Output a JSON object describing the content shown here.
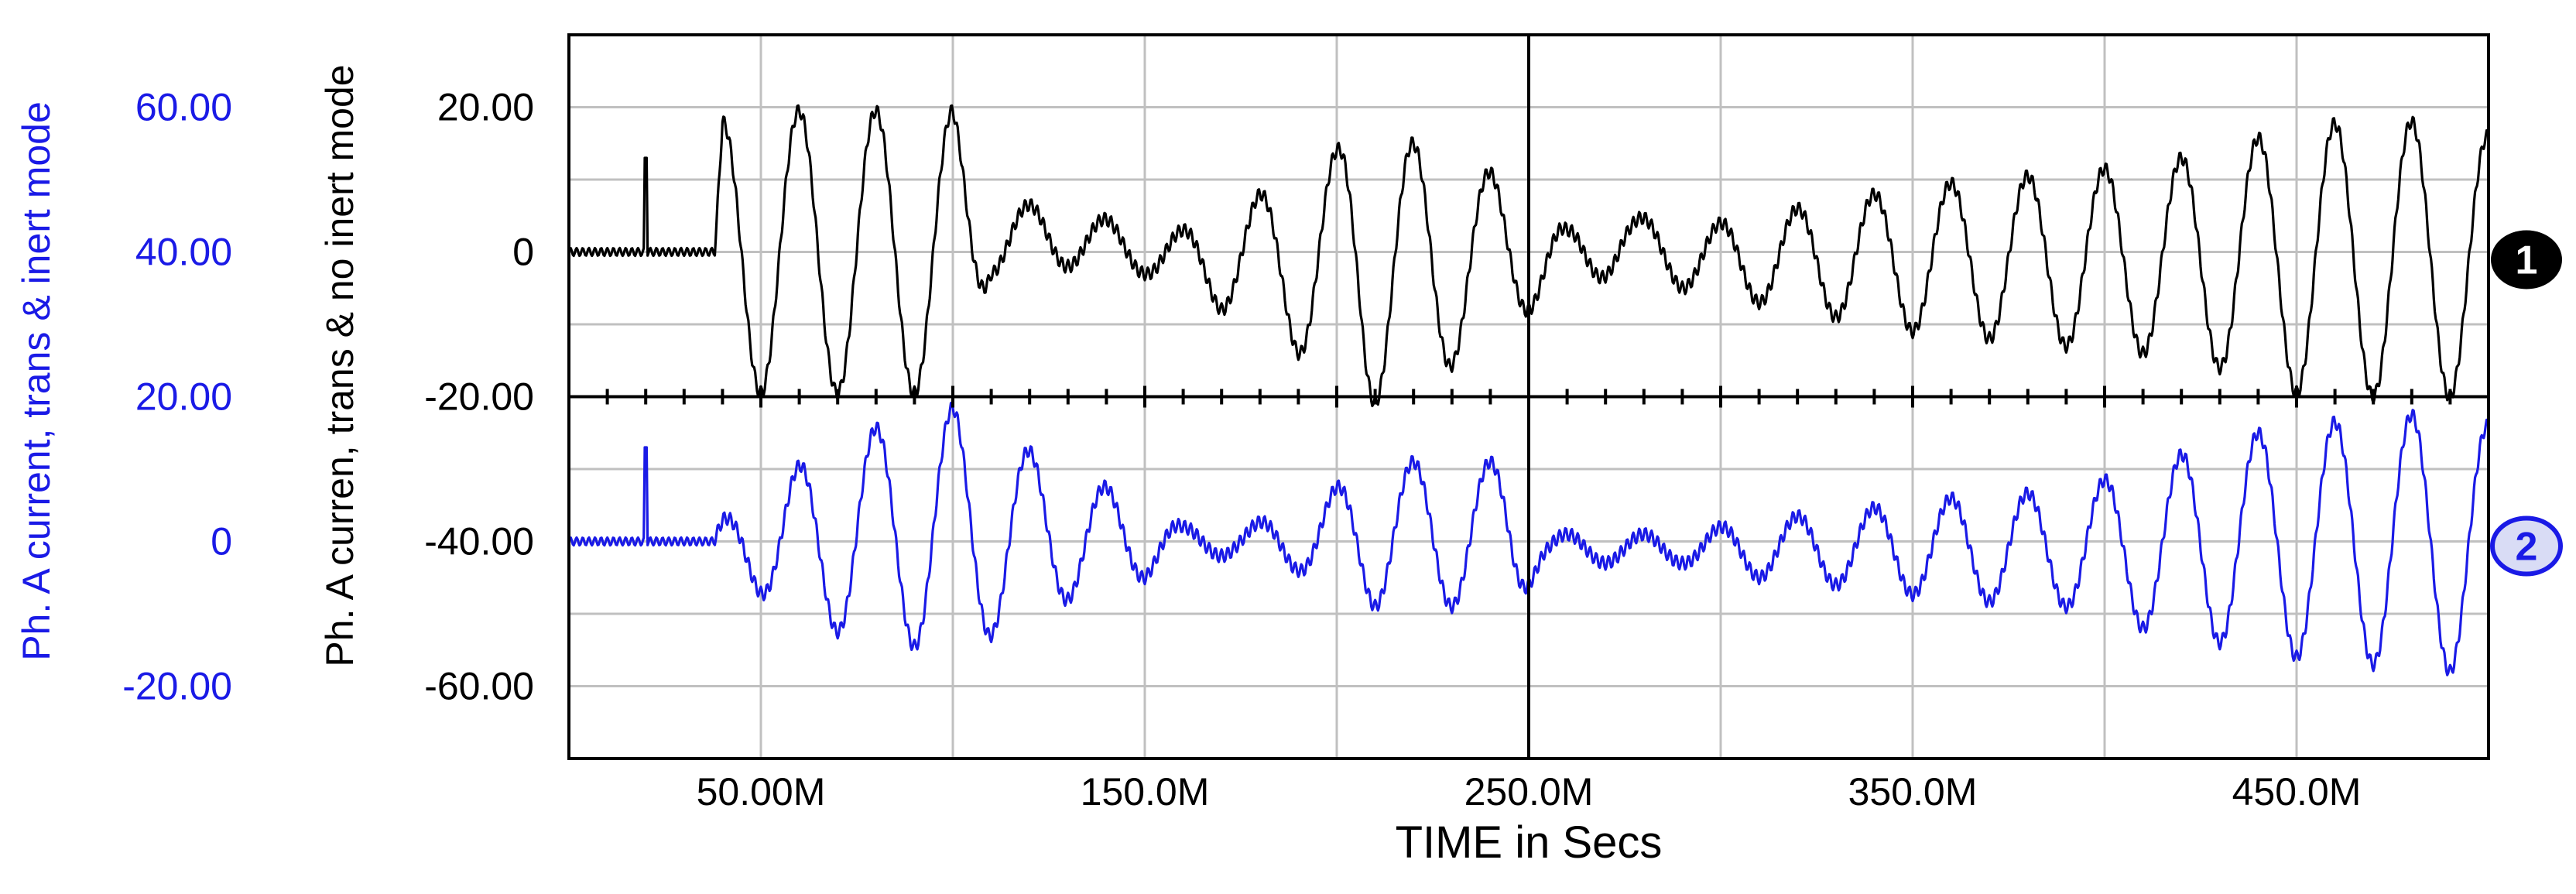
{
  "chart_data": {
    "type": "line",
    "xlabel": "TIME in Secs",
    "x_unit_scale": 0.001,
    "xlim": [
      0,
      500
    ],
    "x_tick_values": [
      50,
      150,
      250,
      350,
      450
    ],
    "x_tick_labels": [
      "50.00M",
      "150.0M",
      "250.0M",
      "350.0M",
      "450.0M"
    ],
    "grid": true,
    "axes": [
      {
        "id": "right_axis_black",
        "label": "Ph. A curren, trans & no inert mode",
        "color": "#000000",
        "ylim": [
          -70,
          30
        ],
        "tick_values": [
          20,
          0,
          -20,
          -40,
          -60
        ],
        "tick_labels": [
          "20.00",
          "0",
          "-20.00",
          "-40.00",
          "-60.00"
        ]
      },
      {
        "id": "left_axis_blue",
        "label": "Ph. A current, trans & inert mode",
        "color": "#1a1ae6",
        "ylim": [
          -30,
          70
        ],
        "tick_values": [
          60,
          40,
          20,
          0,
          -20
        ],
        "tick_labels": [
          "60.00",
          "40.00",
          "20.00",
          "0",
          "-20.00"
        ]
      }
    ],
    "series": [
      {
        "marker": "1",
        "axis": "right_axis_black",
        "color": "#000000",
        "envelope": {
          "t": [
            0,
            20,
            38,
            40,
            50,
            60,
            70,
            100,
            110,
            130,
            150,
            160,
            170,
            180,
            190,
            200,
            206,
            210,
            225,
            240,
            250,
            260,
            275,
            290,
            310,
            330,
            350,
            370,
            390,
            410,
            430,
            450,
            470,
            490,
            500
          ],
          "amp": [
            0.5,
            0.5,
            0.5,
            18,
            19.5,
            19.5,
            19.5,
            19.5,
            5,
            4,
            3,
            4,
            6,
            8,
            12,
            16,
            20,
            19,
            16,
            11,
            8,
            5,
            3.5,
            4,
            6,
            8,
            10,
            11,
            12,
            13,
            15,
            18.5,
            19,
            19,
            17
          ],
          "offset": [
            0,
            0,
            0,
            0,
            0,
            0,
            0,
            0,
            2,
            2,
            0,
            -1,
            -2,
            0,
            -2,
            -2,
            0,
            -2,
            -2,
            0,
            0,
            -2,
            2,
            -1,
            -1,
            -1,
            -1,
            -1,
            -1,
            -1,
            -1,
            -1,
            -1,
            -1,
            -1
          ]
        }
      },
      {
        "marker": "2",
        "axis": "left_axis_blue",
        "color": "#1a1ae6",
        "envelope": {
          "t": [
            0,
            20,
            38,
            40,
            45,
            60,
            75,
            100,
            110,
            130,
            150,
            160,
            175,
            190,
            210,
            230,
            245,
            255,
            270,
            290,
            310,
            330,
            360,
            390,
            410,
            430,
            450,
            470,
            490,
            500
          ],
          "amp": [
            0.5,
            0.5,
            0.5,
            3,
            5,
            11,
            14,
            17,
            14,
            9,
            5,
            2,
            2,
            4,
            10,
            10,
            10,
            2,
            2,
            2,
            4,
            5,
            7,
            8,
            11,
            14,
            16,
            17,
            18,
            16
          ],
          "offset": [
            0,
            0,
            0,
            0,
            0,
            -0.5,
            1,
            1.5,
            1,
            1,
            0,
            0,
            0,
            0,
            1,
            1,
            1,
            -1,
            -1,
            -1,
            -1,
            -1,
            -1,
            -1,
            -1,
            0,
            0,
            0,
            0,
            0
          ]
        }
      }
    ]
  }
}
